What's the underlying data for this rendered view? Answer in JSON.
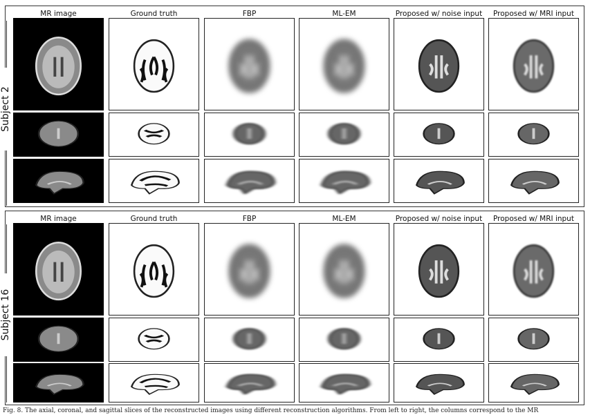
{
  "columns": [
    "MR image",
    "Ground truth",
    "FBP",
    "ML-EM",
    "Proposed w/ noise input",
    "Proposed w/ MRI input"
  ],
  "subjects": [
    {
      "label": "Subject 2",
      "views": [
        "axial",
        "coronal",
        "sagittal"
      ]
    },
    {
      "label": "Subject 16",
      "views": [
        "axial",
        "coronal",
        "sagittal"
      ]
    }
  ],
  "caption": "Fig. 8.  The axial, coronal, and sagittal slices of the reconstructed images using different reconstruction algorithms. From left to right, the columns correspond to the MR"
}
